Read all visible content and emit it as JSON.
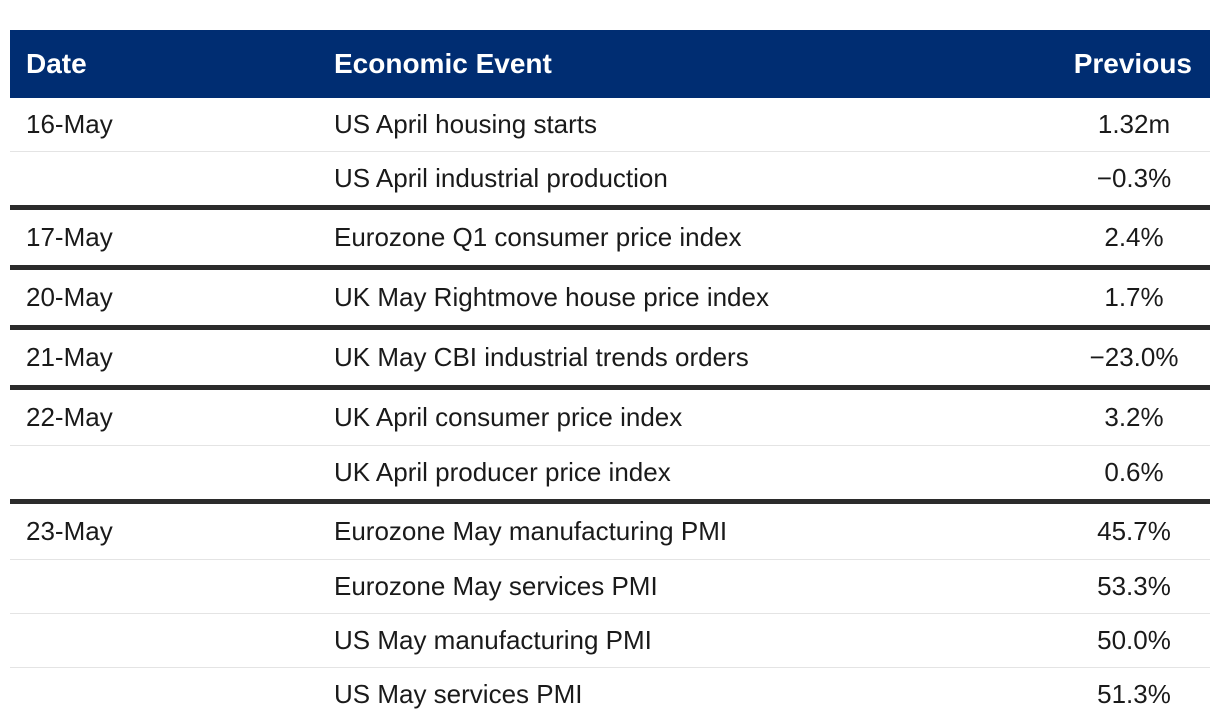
{
  "table": {
    "headers": {
      "date": "Date",
      "event": "Economic Event",
      "previous": "Previous"
    },
    "rows": [
      {
        "date": "16-May",
        "event": "US April housing starts",
        "previous": "1.32m"
      },
      {
        "date": "",
        "event": "US April industrial production",
        "previous": "−0.3%"
      },
      {
        "date": "17-May",
        "event": "Eurozone Q1 consumer price index",
        "previous": "2.4%"
      },
      {
        "date": "20-May",
        "event": "UK May Rightmove house price index",
        "previous": "1.7%"
      },
      {
        "date": "21-May",
        "event": "UK May CBI industrial trends orders",
        "previous": "−23.0%"
      },
      {
        "date": "22-May",
        "event": "UK April consumer price index",
        "previous": "3.2%"
      },
      {
        "date": "",
        "event": "UK April producer price index",
        "previous": "0.6%"
      },
      {
        "date": "23-May",
        "event": "Eurozone May manufacturing PMI",
        "previous": "45.7%"
      },
      {
        "date": "",
        "event": "Eurozone May services PMI",
        "previous": "53.3%"
      },
      {
        "date": "",
        "event": "US May manufacturing PMI",
        "previous": "50.0%"
      },
      {
        "date": "",
        "event": "US May services PMI",
        "previous": "51.3%"
      }
    ]
  },
  "colors": {
    "header_bg": "#002d72",
    "header_text": "#ffffff",
    "group_divider": "#2b2b2b",
    "row_divider": "#e4e4e4"
  }
}
